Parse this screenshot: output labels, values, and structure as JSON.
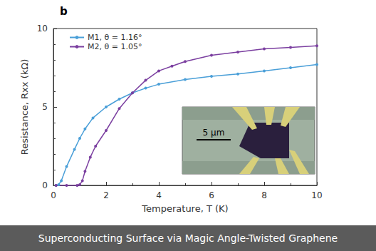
{
  "chart_data": {
    "type": "line",
    "title": "b",
    "caption": "Superconducting Surface via Magic Angle-Twisted Graphene",
    "x_label": "Temperature, T (K)",
    "y_label": "Resistance, Rxx (kΩ)",
    "annotations": [
      "5 μm"
    ],
    "xlim": [
      0,
      10
    ],
    "xticks": [
      0,
      2,
      4,
      6,
      8,
      10
    ],
    "ylim": [
      0,
      10
    ],
    "yticks": [
      0,
      5,
      10
    ],
    "grid": false,
    "legend": "upper left",
    "marker": "circle",
    "line_style": "solid",
    "series": [
      {
        "name": "M1, θ = 1.16°",
        "color": "#4a9fd8",
        "x": [
          0.1,
          0.2,
          0.3,
          0.5,
          0.8,
          1.0,
          1.2,
          1.5,
          2.0,
          2.5,
          3.0,
          3.5,
          4.0,
          5.0,
          6.0,
          7.0,
          8.0,
          9.0,
          10.0
        ],
        "values": [
          0.0,
          0.05,
          0.3,
          1.2,
          2.3,
          3.0,
          3.6,
          4.3,
          5.0,
          5.5,
          5.9,
          6.2,
          6.45,
          6.75,
          6.95,
          7.1,
          7.3,
          7.5,
          7.7
        ]
      },
      {
        "name": "M2, θ = 1.05°",
        "color": "#7b3fa0",
        "x": [
          0.1,
          0.5,
          0.9,
          1.0,
          1.1,
          1.2,
          1.4,
          1.6,
          2.0,
          2.5,
          3.0,
          3.5,
          4.0,
          4.5,
          5.0,
          6.0,
          7.0,
          8.0,
          9.0,
          10.0
        ],
        "values": [
          0.0,
          0.0,
          0.0,
          0.05,
          0.3,
          0.9,
          1.8,
          2.5,
          3.5,
          4.9,
          5.9,
          6.7,
          7.3,
          7.6,
          7.9,
          8.3,
          8.5,
          8.7,
          8.8,
          8.9
        ]
      }
    ]
  }
}
